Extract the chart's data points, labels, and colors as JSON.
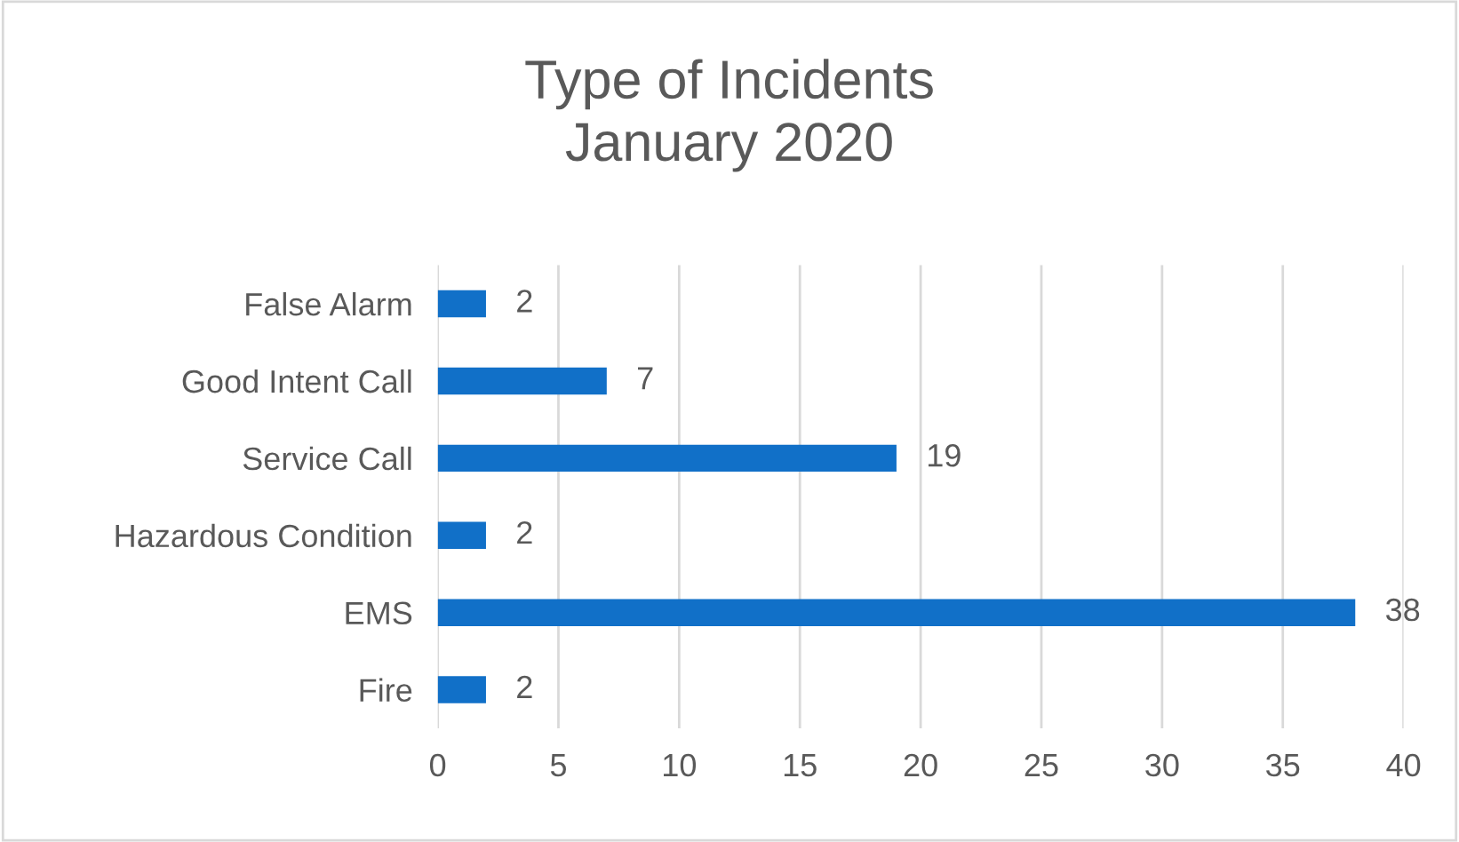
{
  "chart_data": {
    "type": "bar",
    "orientation": "horizontal",
    "title": "Type of Incidents\nJanuary 2020",
    "categories": [
      "False Alarm",
      "Good Intent Call",
      "Service Call",
      "Hazardous Condition",
      "EMS",
      "Fire"
    ],
    "values": [
      2,
      7,
      19,
      2,
      38,
      2
    ],
    "color": "#1170c8",
    "xlim": [
      0,
      40
    ],
    "xticks": [
      0,
      5,
      10,
      15,
      20,
      25,
      30,
      35,
      40
    ],
    "grid": "x",
    "data_labels": true
  }
}
